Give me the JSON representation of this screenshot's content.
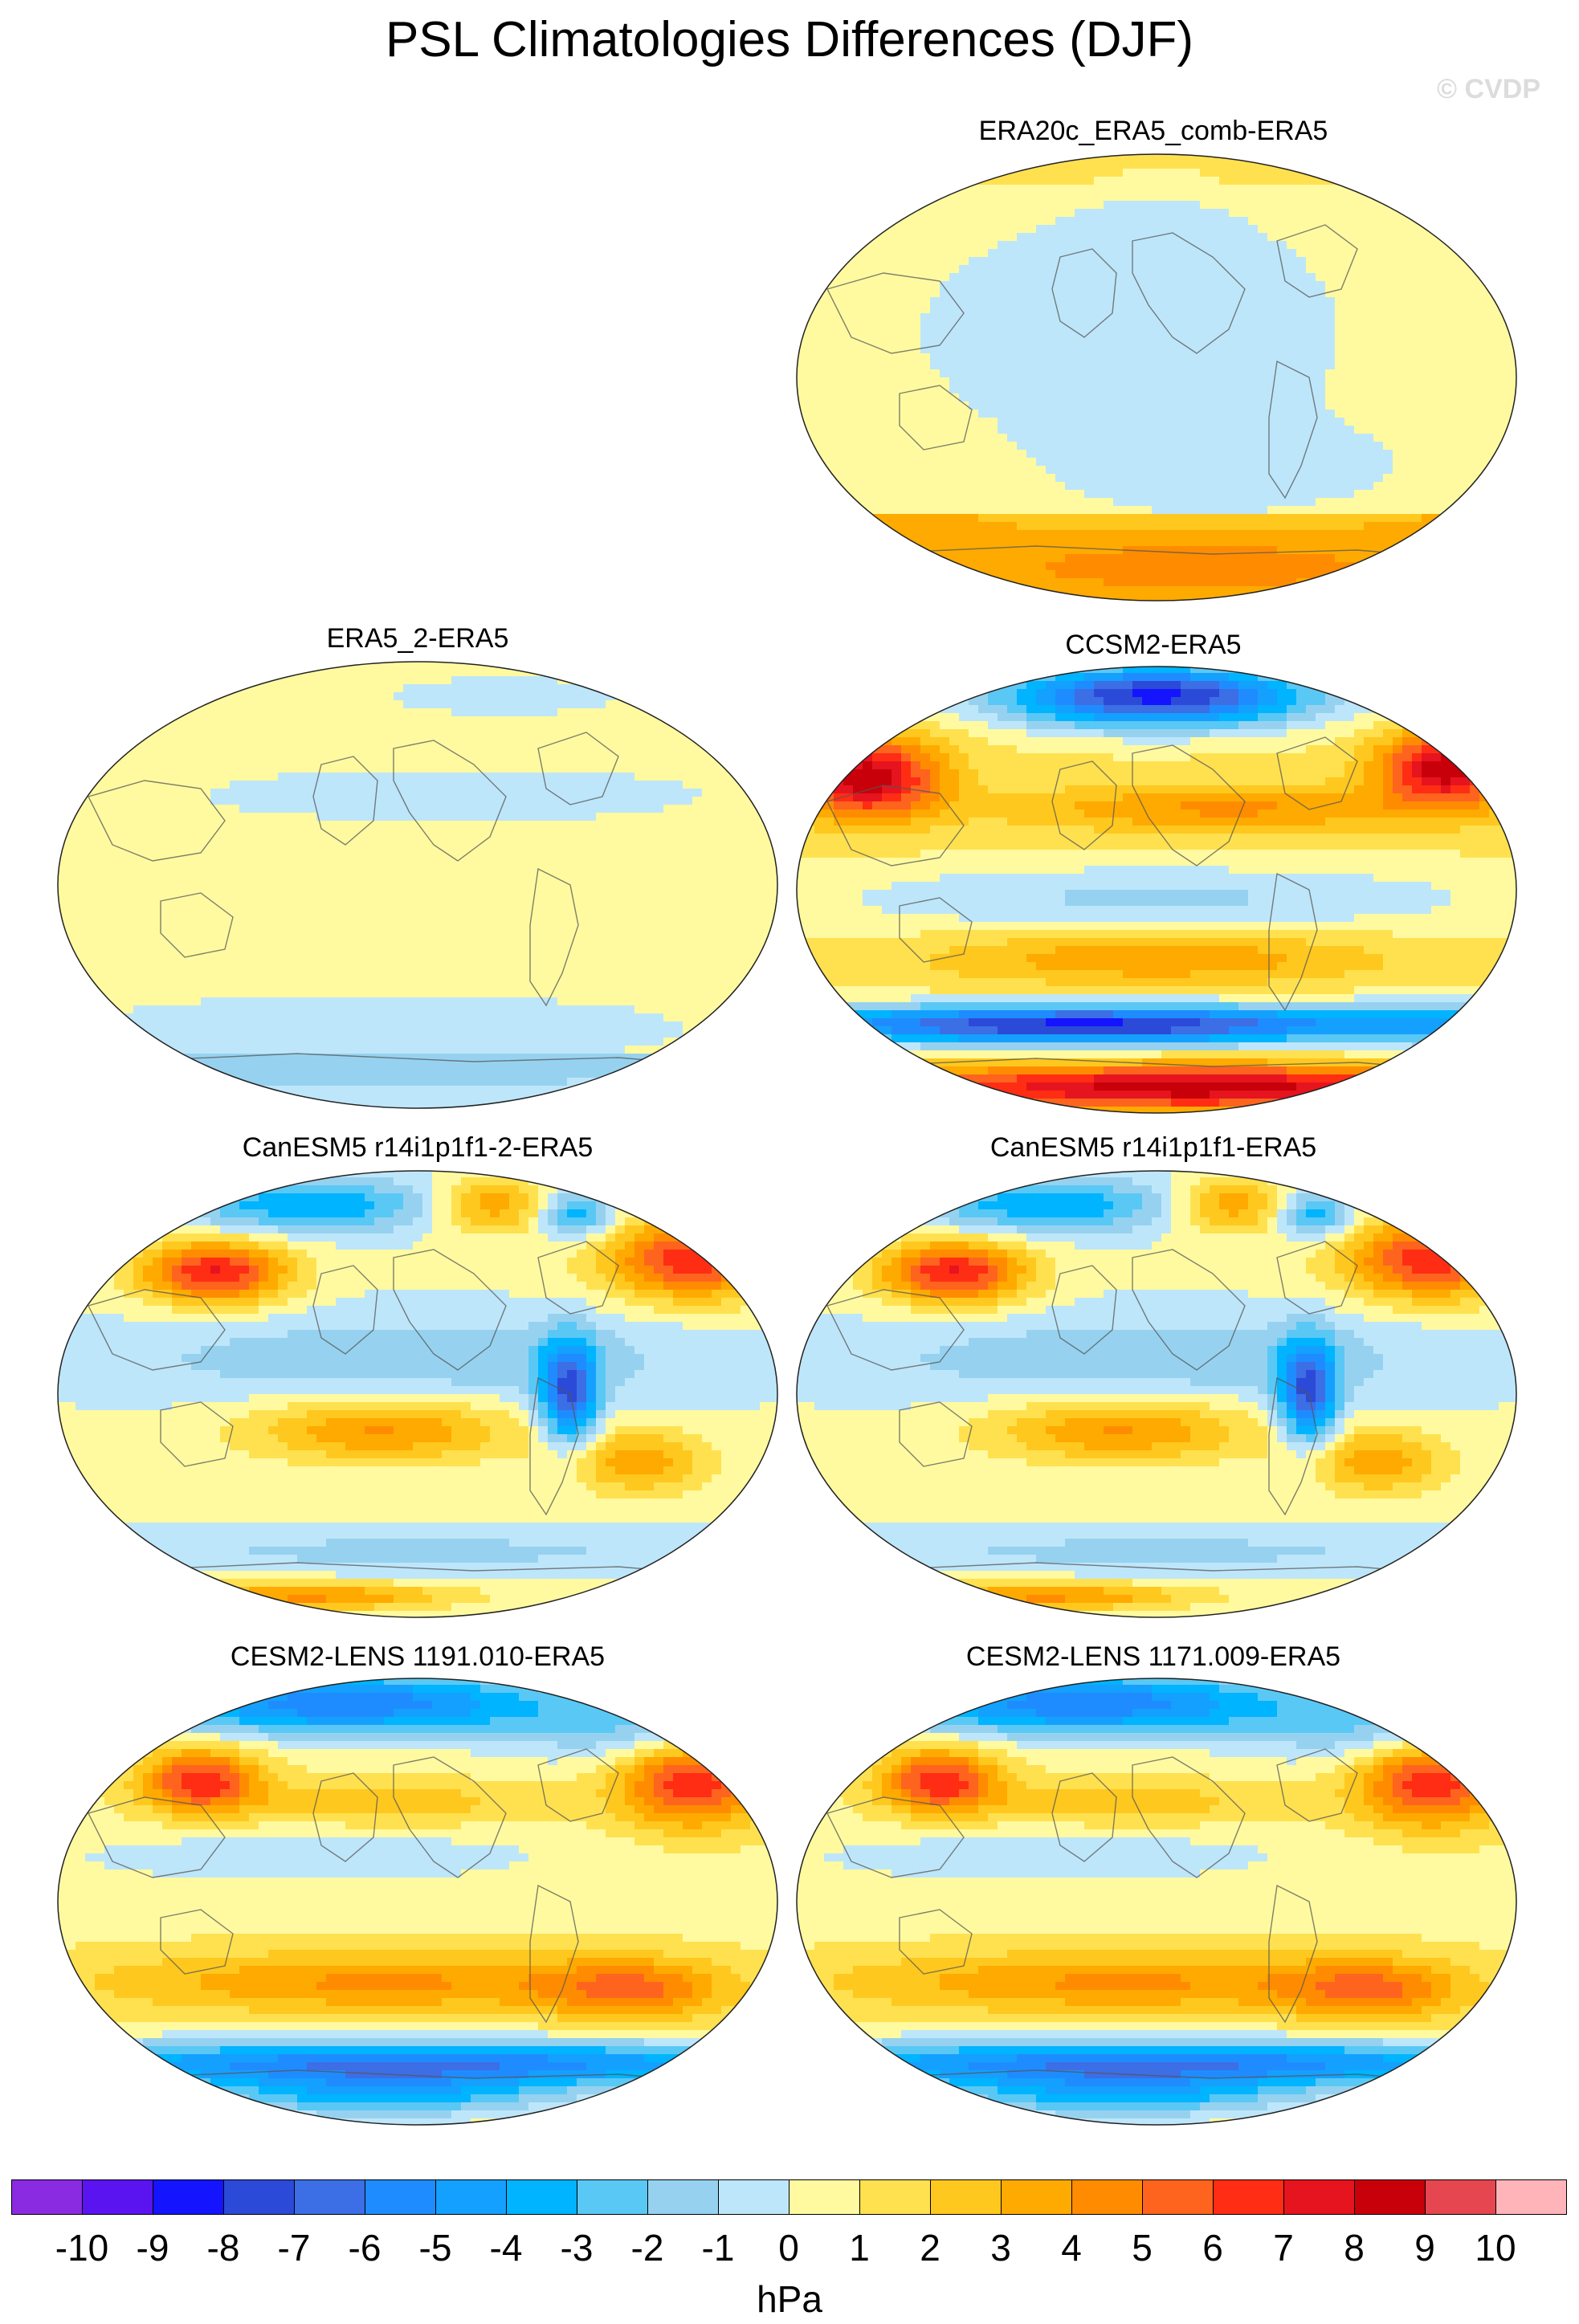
{
  "title": "PSL Climatologies Differences (DJF)",
  "watermark": "© CVDP",
  "panels": [
    {
      "label": "ERA20c_ERA5_comb-ERA5",
      "pattern": "weak_pos"
    },
    {
      "label": "ERA5_2-ERA5",
      "pattern": "near_zero"
    },
    {
      "label": "CCSM2-ERA5",
      "pattern": "strong"
    },
    {
      "label": "CanESM5 r14i1p1f1-2-ERA5",
      "pattern": "canesm"
    },
    {
      "label": "CanESM5 r14i1p1f1-ERA5",
      "pattern": "canesm"
    },
    {
      "label": "CESM2-LENS 1191.010-ERA5",
      "pattern": "cesm"
    },
    {
      "label": "CESM2-LENS 1171.009-ERA5",
      "pattern": "cesm"
    }
  ],
  "colorbar": {
    "units": "hPa",
    "tick_labels": [
      "-10",
      "-9",
      "-8",
      "-7",
      "-6",
      "-5",
      "-4",
      "-3",
      "-2",
      "-1",
      "0",
      "1",
      "2",
      "3",
      "4",
      "5",
      "6",
      "7",
      "8",
      "9",
      "10"
    ],
    "colors": [
      "#8a2be2",
      "#5a14f0",
      "#1414ff",
      "#2c4ad8",
      "#3c6ee6",
      "#1e8cff",
      "#14a0ff",
      "#00b4ff",
      "#5ac8f5",
      "#96d2f0",
      "#bee6fa",
      "#fffaa0",
      "#ffe150",
      "#ffc81e",
      "#ffaa00",
      "#ff8c00",
      "#ff641e",
      "#ff2d14",
      "#e6141e",
      "#c8000a",
      "#e64650",
      "#ffb4b9"
    ]
  }
}
